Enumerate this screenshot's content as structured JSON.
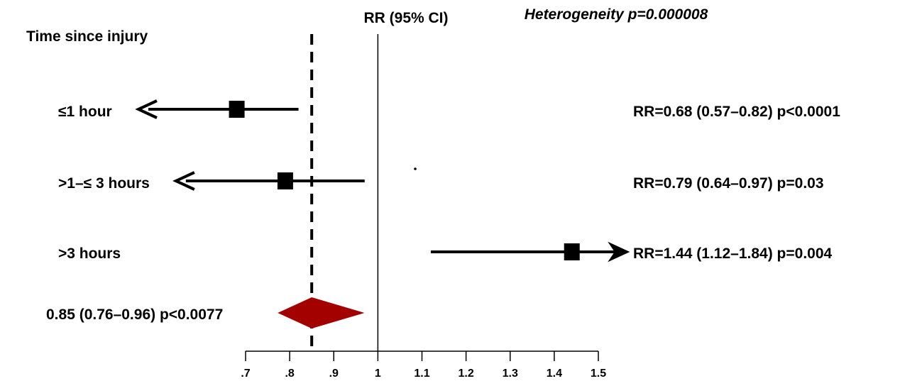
{
  "chart_data": {
    "type": "forest",
    "title": "RR (95% CI)",
    "heterogeneity": "Heterogeneity p=0.000008",
    "group_label": "Time since injury",
    "null_line": 1.0,
    "x_ticks": [
      ".7",
      ".8",
      ".9",
      "1",
      "1.1",
      "1.2",
      "1.3",
      "1.4",
      "1.5"
    ],
    "x_tick_values": [
      0.7,
      0.8,
      0.9,
      1.0,
      1.1,
      1.2,
      1.3,
      1.4,
      1.5
    ],
    "xlim": [
      0.7,
      1.5
    ],
    "rows": [
      {
        "label": "≤1 hour",
        "rr": 0.68,
        "lower": 0.57,
        "upper": 0.82,
        "p": "p<0.0001",
        "text": "RR=0.68 (0.57–0.82) p<0.0001"
      },
      {
        "label": ">1–≤ 3 hours",
        "rr": 0.79,
        "lower": 0.64,
        "upper": 0.97,
        "p": "p=0.03",
        "text": "RR=0.79 (0.64–0.97) p=0.03"
      },
      {
        "label": ">3 hours",
        "rr": 1.44,
        "lower": 1.12,
        "upper": 1.84,
        "p": "p=0.004",
        "text": "RR=1.44 (1.12–1.84) p=0.004"
      }
    ],
    "pooled": {
      "rr": 0.85,
      "lower": 0.76,
      "upper": 0.96,
      "text": "0.85 (0.76–0.96) p<0.0077"
    },
    "colors": {
      "diamond": "#a30000",
      "marks": "#000000"
    }
  }
}
